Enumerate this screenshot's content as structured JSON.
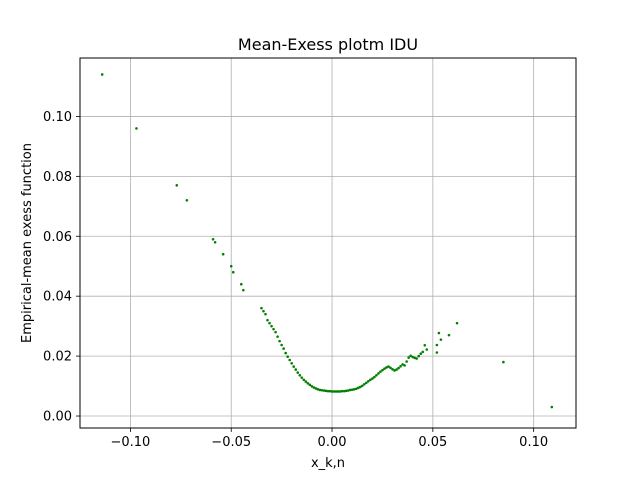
{
  "chart_data": {
    "type": "scatter",
    "title": "Mean-Exess plotm IDU",
    "xlabel": "x_k,n",
    "ylabel": "Empirical-mean exess function",
    "xlim": [
      -0.125,
      0.121
    ],
    "ylim": [
      -0.004,
      0.1195
    ],
    "grid": true,
    "marker_color": "#008000",
    "x_ticks": [
      {
        "value": -0.1,
        "label": "−0.10"
      },
      {
        "value": -0.05,
        "label": "−0.05"
      },
      {
        "value": 0.0,
        "label": "0.00"
      },
      {
        "value": 0.05,
        "label": "0.05"
      },
      {
        "value": 0.1,
        "label": "0.10"
      }
    ],
    "y_ticks": [
      {
        "value": 0.0,
        "label": "0.00"
      },
      {
        "value": 0.02,
        "label": "0.02"
      },
      {
        "value": 0.04,
        "label": "0.04"
      },
      {
        "value": 0.06,
        "label": "0.06"
      },
      {
        "value": 0.08,
        "label": "0.08"
      },
      {
        "value": 0.1,
        "label": "0.10"
      }
    ],
    "series": [
      {
        "x": [
          -0.114,
          -0.097,
          -0.077,
          -0.072,
          -0.059,
          -0.058,
          -0.054,
          -0.05,
          -0.049,
          -0.045,
          -0.044,
          -0.035,
          -0.034,
          -0.033,
          -0.032,
          -0.031,
          -0.03,
          -0.029,
          -0.028,
          -0.027,
          -0.026,
          -0.025,
          -0.024,
          -0.023,
          -0.022,
          -0.021,
          -0.02,
          -0.019,
          -0.018,
          -0.017,
          -0.016,
          -0.015,
          -0.014,
          -0.013,
          -0.012,
          -0.011,
          -0.01,
          -0.009,
          -0.008,
          -0.007,
          -0.006,
          -0.005,
          -0.004,
          -0.003,
          -0.002,
          -0.001,
          0.0,
          0.001,
          0.002,
          0.003,
          0.004,
          0.005,
          0.006,
          0.007,
          0.008,
          0.009,
          0.01,
          0.011,
          0.012,
          0.013,
          0.014,
          0.015,
          0.016,
          0.017,
          0.018,
          0.019,
          0.02,
          0.021,
          0.022,
          0.023,
          0.024,
          0.025,
          0.026,
          0.027,
          0.028,
          0.029,
          0.03,
          0.031,
          0.032,
          0.033,
          0.034,
          0.035,
          0.036,
          0.037,
          0.038,
          0.039,
          0.04,
          0.041,
          0.042,
          0.043,
          0.044,
          0.045,
          0.046,
          0.047,
          0.052,
          0.052,
          0.053,
          0.054,
          0.058,
          0.062,
          0.085,
          0.109
        ],
        "y": [
          0.114,
          0.096,
          0.077,
          0.072,
          0.059,
          0.058,
          0.054,
          0.05,
          0.048,
          0.044,
          0.042,
          0.036,
          0.035,
          0.034,
          0.032,
          0.031,
          0.03,
          0.029,
          0.028,
          0.0265,
          0.025,
          0.0237,
          0.0225,
          0.021,
          0.0198,
          0.0187,
          0.0176,
          0.0165,
          0.0155,
          0.0145,
          0.0136,
          0.0128,
          0.0121,
          0.0115,
          0.0109,
          0.0104,
          0.0099,
          0.0095,
          0.0092,
          0.0089,
          0.0087,
          0.0086,
          0.0085,
          0.0084,
          0.0083,
          0.0083,
          0.0082,
          0.0082,
          0.0082,
          0.0082,
          0.0082,
          0.0083,
          0.0083,
          0.0084,
          0.0085,
          0.0087,
          0.0088,
          0.0089,
          0.0091,
          0.0094,
          0.0097,
          0.0101,
          0.0106,
          0.0111,
          0.0116,
          0.0121,
          0.0125,
          0.013,
          0.0136,
          0.0142,
          0.0148,
          0.0153,
          0.0158,
          0.0162,
          0.0165,
          0.0161,
          0.0156,
          0.0152,
          0.0155,
          0.016,
          0.0166,
          0.0172,
          0.0169,
          0.0182,
          0.0195,
          0.0201,
          0.0197,
          0.0194,
          0.0192,
          0.02,
          0.0208,
          0.0214,
          0.0236,
          0.0222,
          0.0212,
          0.0237,
          0.0277,
          0.0255,
          0.027,
          0.031,
          0.018,
          0.003
        ]
      }
    ]
  }
}
